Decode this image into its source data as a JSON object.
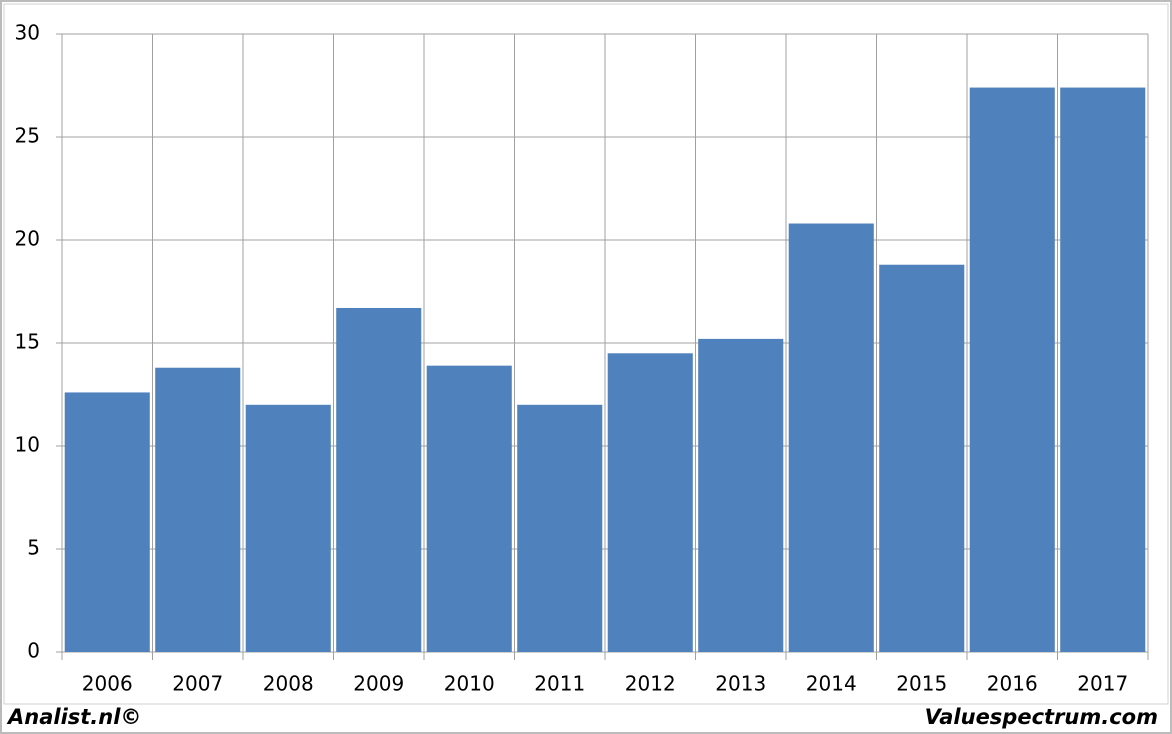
{
  "chart_data": {
    "type": "bar",
    "categories": [
      "2006",
      "2007",
      "2008",
      "2009",
      "2010",
      "2011",
      "2012",
      "2013",
      "2014",
      "2015",
      "2016",
      "2017"
    ],
    "values": [
      12.6,
      13.8,
      12.0,
      16.7,
      13.9,
      12.0,
      14.5,
      15.2,
      20.8,
      18.8,
      27.4,
      27.4
    ],
    "color": "#4f81bd",
    "ylim": [
      0,
      30
    ],
    "yticks": [
      0,
      5,
      10,
      15,
      20,
      25,
      30
    ],
    "grid": true
  },
  "footer": {
    "left": "Analist.nl©",
    "right": "Valuespectrum.com"
  }
}
